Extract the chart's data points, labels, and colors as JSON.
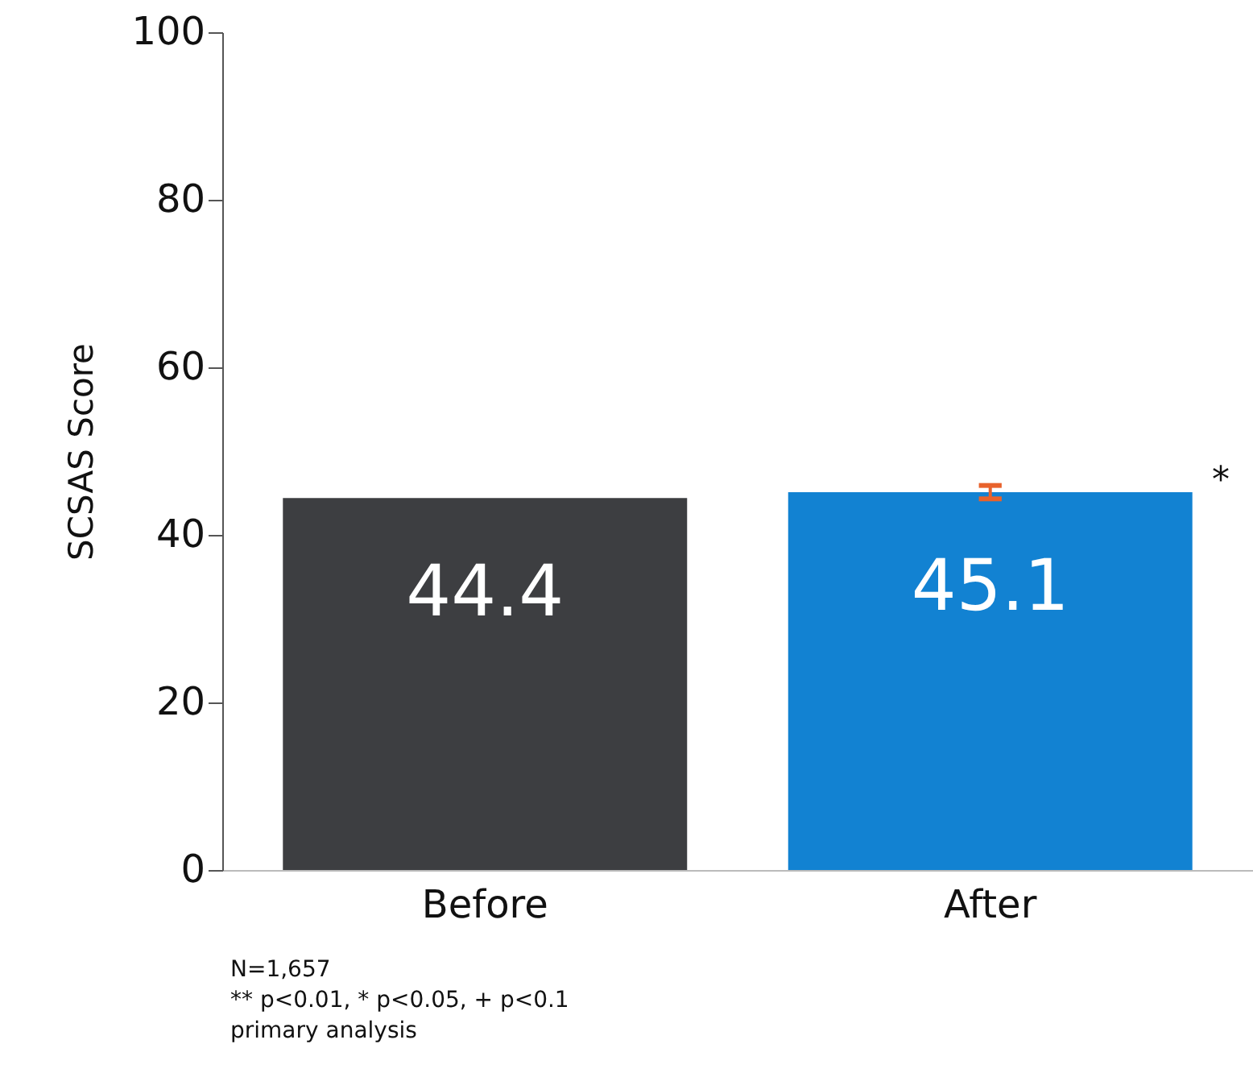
{
  "chart_data": {
    "type": "bar",
    "ylabel": "SCSAS Score",
    "categories": [
      "Before",
      "After"
    ],
    "values": [
      44.4,
      45.1
    ],
    "colors": [
      "#3d3e41",
      "#1282d2"
    ],
    "errors": [
      null,
      0.8
    ],
    "ylim": [
      0,
      100
    ],
    "yticks": [
      0,
      20,
      40,
      60,
      80,
      100
    ],
    "data_labels": true,
    "grid": false,
    "annotations": [
      "*",
      "N=1,657",
      "** p<0.01, * p<0.05, + p<0.1",
      "primary analysis"
    ]
  }
}
